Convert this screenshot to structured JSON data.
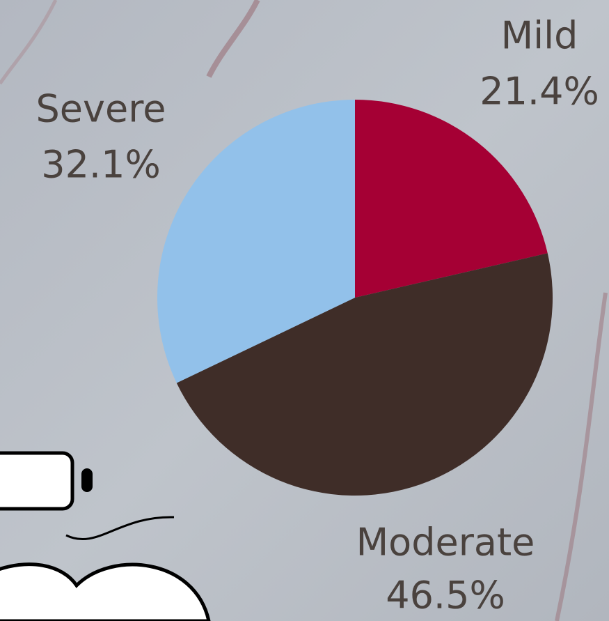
{
  "chart_data": {
    "type": "pie",
    "categories": [
      "Mild",
      "Moderate",
      "Severe"
    ],
    "values": [
      21.4,
      46.5,
      32.1
    ],
    "value_labels": [
      "21.4%",
      "46.5%",
      "32.1%"
    ],
    "colors": [
      "#a50034",
      "#3f2d28",
      "#92c1ea"
    ]
  }
}
